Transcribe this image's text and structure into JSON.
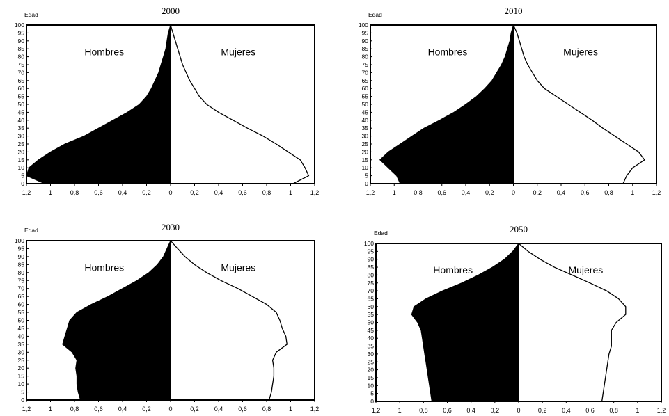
{
  "chart_data": [
    {
      "type": "area",
      "title": "2000",
      "ylabel": "Edad",
      "series_labels": {
        "left": "Hombres",
        "right": "Mujeres"
      },
      "ages": [
        0,
        5,
        10,
        15,
        20,
        25,
        30,
        35,
        40,
        45,
        50,
        55,
        60,
        65,
        70,
        75,
        80,
        85,
        90,
        95,
        100
      ],
      "hombres": [
        1.05,
        1.2,
        1.18,
        1.1,
        1.0,
        0.88,
        0.72,
        0.6,
        0.48,
        0.36,
        0.26,
        0.2,
        0.16,
        0.13,
        0.1,
        0.08,
        0.06,
        0.04,
        0.03,
        0.02,
        0.0
      ],
      "mujeres": [
        1.02,
        1.15,
        1.12,
        1.08,
        0.98,
        0.88,
        0.77,
        0.64,
        0.52,
        0.4,
        0.3,
        0.24,
        0.2,
        0.16,
        0.13,
        0.1,
        0.08,
        0.06,
        0.04,
        0.02,
        0.0
      ],
      "x_ticks_left": [
        "1,2",
        "1",
        "0,8",
        "0,6",
        "0,4",
        "0,2",
        "0"
      ],
      "x_ticks_right": [
        "0",
        "0,2",
        "0,4",
        "0,6",
        "0,8",
        "1",
        "1,2"
      ],
      "y_ticks": [
        "0",
        "5",
        "10",
        "15",
        "20",
        "25",
        "30",
        "35",
        "40",
        "45",
        "50",
        "55",
        "60",
        "65",
        "70",
        "75",
        "80",
        "85",
        "90",
        "95",
        "100"
      ],
      "xlim": [
        0,
        1.2
      ],
      "ylim": [
        0,
        100
      ]
    },
    {
      "type": "area",
      "title": "2010",
      "ylabel": "Edad",
      "series_labels": {
        "left": "Hombres",
        "right": "Mujeres"
      },
      "ages": [
        0,
        5,
        10,
        15,
        20,
        25,
        30,
        35,
        40,
        45,
        50,
        55,
        60,
        65,
        70,
        75,
        80,
        85,
        90,
        95,
        100
      ],
      "hombres": [
        0.95,
        0.98,
        1.05,
        1.12,
        1.05,
        0.95,
        0.85,
        0.75,
        0.62,
        0.5,
        0.4,
        0.31,
        0.24,
        0.18,
        0.14,
        0.1,
        0.07,
        0.05,
        0.03,
        0.02,
        0.0
      ],
      "mujeres": [
        0.92,
        0.95,
        1.0,
        1.1,
        1.05,
        0.95,
        0.85,
        0.75,
        0.66,
        0.56,
        0.46,
        0.36,
        0.26,
        0.2,
        0.16,
        0.12,
        0.09,
        0.07,
        0.05,
        0.03,
        0.0
      ],
      "x_ticks_left": [
        "1,2",
        "1",
        "0,8",
        "0,6",
        "0,4",
        "0,2",
        "0"
      ],
      "x_ticks_right": [
        "0",
        "0,2",
        "0,4",
        "0,6",
        "0,8",
        "1",
        "1,2"
      ],
      "y_ticks": [
        "0",
        "5",
        "10",
        "15",
        "20",
        "25",
        "30",
        "35",
        "40",
        "45",
        "50",
        "55",
        "60",
        "65",
        "70",
        "75",
        "80",
        "85",
        "90",
        "95",
        "100"
      ],
      "xlim": [
        0,
        1.2
      ],
      "ylim": [
        0,
        100
      ]
    },
    {
      "type": "area",
      "title": "2030",
      "ylabel": "Edad",
      "series_labels": {
        "left": "Hombres",
        "right": "Mujeres"
      },
      "ages": [
        0,
        5,
        10,
        15,
        20,
        25,
        30,
        35,
        40,
        45,
        50,
        55,
        60,
        65,
        70,
        75,
        80,
        85,
        90,
        95,
        100
      ],
      "hombres": [
        0.75,
        0.77,
        0.78,
        0.78,
        0.79,
        0.78,
        0.82,
        0.9,
        0.88,
        0.86,
        0.84,
        0.78,
        0.66,
        0.52,
        0.4,
        0.28,
        0.18,
        0.11,
        0.06,
        0.03,
        0.0
      ],
      "mujeres": [
        0.82,
        0.84,
        0.85,
        0.86,
        0.86,
        0.85,
        0.88,
        0.97,
        0.96,
        0.93,
        0.91,
        0.88,
        0.8,
        0.68,
        0.56,
        0.42,
        0.3,
        0.2,
        0.12,
        0.06,
        0.0
      ],
      "x_ticks_left": [
        "1,2",
        "1",
        "0,8",
        "0,6",
        "0,4",
        "0,2",
        "0"
      ],
      "x_ticks_right": [
        "0",
        "0,2",
        "0,4",
        "0,6",
        "0,8",
        "1",
        "1,2"
      ],
      "y_ticks": [
        "0",
        "5",
        "10",
        "15",
        "20",
        "25",
        "30",
        "35",
        "40",
        "45",
        "50",
        "55",
        "60",
        "65",
        "70",
        "75",
        "80",
        "85",
        "90",
        "95",
        "100"
      ],
      "xlim": [
        0,
        1.2
      ],
      "ylim": [
        0,
        100
      ]
    },
    {
      "type": "area",
      "title": "2050",
      "ylabel": "Edad",
      "series_labels": {
        "left": "Hombres",
        "right": "Mujeres"
      },
      "ages": [
        0,
        5,
        10,
        15,
        20,
        25,
        30,
        35,
        40,
        45,
        50,
        55,
        60,
        65,
        70,
        75,
        80,
        85,
        90,
        95,
        100
      ],
      "hombres": [
        0.73,
        0.74,
        0.75,
        0.76,
        0.77,
        0.78,
        0.79,
        0.8,
        0.81,
        0.82,
        0.85,
        0.9,
        0.88,
        0.78,
        0.64,
        0.48,
        0.34,
        0.22,
        0.12,
        0.05,
        0.0
      ],
      "mujeres": [
        0.7,
        0.71,
        0.72,
        0.73,
        0.74,
        0.75,
        0.76,
        0.78,
        0.78,
        0.78,
        0.82,
        0.9,
        0.9,
        0.84,
        0.74,
        0.6,
        0.45,
        0.3,
        0.18,
        0.08,
        0.0
      ],
      "x_ticks_left": [
        "1,2",
        "1",
        "0,8",
        "0,6",
        "0,4",
        "0,2",
        "0"
      ],
      "x_ticks_right": [
        "0",
        "0,2",
        "0,4",
        "0,6",
        "0,8",
        "1",
        "1,2"
      ],
      "y_ticks": [
        "0",
        "5",
        "10",
        "15",
        "20",
        "25",
        "30",
        "35",
        "40",
        "45",
        "50",
        "55",
        "60",
        "65",
        "70",
        "75",
        "80",
        "85",
        "90",
        "95",
        "100"
      ],
      "xlim": [
        0,
        1.2
      ],
      "ylim": [
        0,
        100
      ]
    }
  ]
}
